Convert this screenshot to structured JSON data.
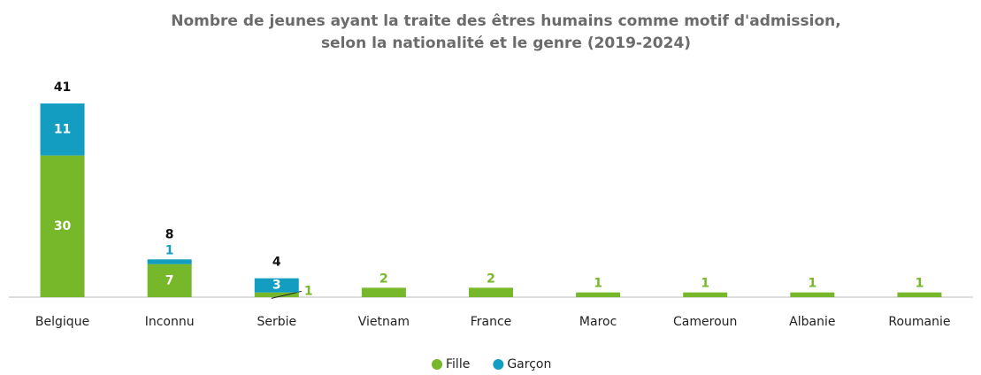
{
  "chart_data": {
    "type": "stacked_bar",
    "title": [
      "Nombre de jeunes ayant la traite des êtres humains comme motif d'admission,",
      "selon la nationalité et le genre (2019-2024)"
    ],
    "categories": [
      "Belgique",
      "Inconnu",
      "Serbie",
      "Vietnam",
      "France",
      "Maroc",
      "Cameroun",
      "Albanie",
      "Roumanie"
    ],
    "series": [
      {
        "name": "Fille",
        "color": "#77b82a",
        "values": [
          30,
          7,
          1,
          2,
          2,
          1,
          1,
          1,
          1
        ]
      },
      {
        "name": "Garçon",
        "color": "#139ec1",
        "values": [
          11,
          1,
          3,
          null,
          null,
          null,
          null,
          null,
          null
        ]
      }
    ],
    "totals": [
      41,
      8,
      4,
      null,
      null,
      null,
      null,
      null,
      null
    ],
    "legend": "bottom"
  }
}
